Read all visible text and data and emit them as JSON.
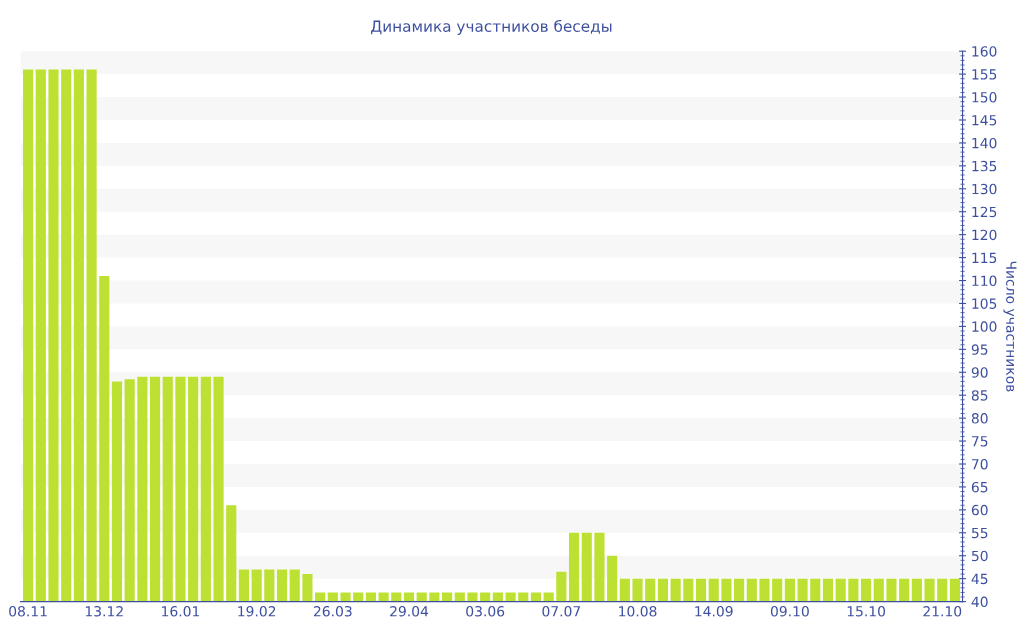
{
  "chart_data": {
    "type": "bar",
    "title": "Динамика участников беседы",
    "ylabel": "Число участников",
    "categories": [
      "08.11",
      null,
      null,
      null,
      null,
      null,
      "13.12",
      null,
      null,
      null,
      null,
      null,
      "16.01",
      null,
      null,
      null,
      null,
      null,
      "19.02",
      null,
      null,
      null,
      null,
      null,
      "26.03",
      null,
      null,
      null,
      null,
      null,
      "29.04",
      null,
      null,
      null,
      null,
      null,
      "03.06",
      null,
      null,
      null,
      null,
      null,
      "07.07",
      null,
      null,
      null,
      null,
      null,
      "10.08",
      null,
      null,
      null,
      null,
      null,
      "14.09",
      null,
      null,
      null,
      null,
      null,
      "09.10",
      null,
      null,
      null,
      null,
      null,
      "15.10",
      null,
      null,
      null,
      null,
      null,
      "21.10",
      null
    ],
    "values": [
      156,
      156,
      156,
      156,
      156,
      156,
      111,
      88,
      88.5,
      89,
      89,
      89,
      89,
      89,
      89,
      89,
      61,
      47,
      47,
      47,
      47,
      47,
      46,
      42,
      42,
      42,
      42,
      42,
      42,
      42,
      42,
      42,
      42,
      42,
      42,
      42,
      42,
      42,
      42,
      42,
      42,
      42,
      46.5,
      55,
      55,
      55,
      50,
      45,
      45,
      45,
      45,
      45,
      45,
      45,
      45,
      45,
      45,
      45,
      45,
      45,
      45,
      45,
      45,
      45,
      45,
      45,
      45,
      45,
      45,
      45,
      45,
      45,
      45,
      45
    ],
    "color": "#bde132",
    "ylim": [
      40,
      160
    ],
    "yticks": [
      40,
      45,
      50,
      55,
      60,
      65,
      70,
      75,
      80,
      85,
      90,
      95,
      100,
      105,
      110,
      115,
      120,
      125,
      130,
      135,
      140,
      145,
      150,
      155,
      160
    ],
    "bands": [
      {
        "axis": "y",
        "from": 45,
        "to": 50,
        "color": "#f7f7f7"
      },
      {
        "axis": "y",
        "from": 55,
        "to": 60,
        "color": "#f7f7f7"
      },
      {
        "axis": "y",
        "from": 65,
        "to": 70,
        "color": "#f7f7f7"
      },
      {
        "axis": "y",
        "from": 75,
        "to": 80,
        "color": "#f7f7f7"
      },
      {
        "axis": "y",
        "from": 85,
        "to": 90,
        "color": "#f7f7f7"
      },
      {
        "axis": "y",
        "from": 95,
        "to": 100,
        "color": "#f7f7f7"
      },
      {
        "axis": "y",
        "from": 105,
        "to": 110,
        "color": "#f7f7f7"
      },
      {
        "axis": "y",
        "from": 115,
        "to": 120,
        "color": "#f7f7f7"
      },
      {
        "axis": "y",
        "from": 125,
        "to": 130,
        "color": "#f7f7f7"
      },
      {
        "axis": "y",
        "from": 135,
        "to": 140,
        "color": "#f7f7f7"
      },
      {
        "axis": "y",
        "from": 145,
        "to": 150,
        "color": "#f7f7f7"
      },
      {
        "axis": "y",
        "from": 155,
        "to": 160,
        "color": "#f7f7f7"
      }
    ],
    "grid": false,
    "legend": false
  }
}
